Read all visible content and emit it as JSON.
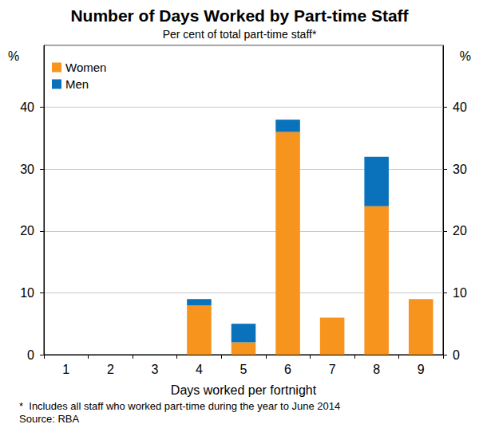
{
  "chart_data": {
    "type": "bar",
    "title": "Number of Days Worked by Part-time Staff",
    "subtitle": "Per cent of total part-time staff*",
    "x_label": "Days worked per fortnight",
    "y_label": "%",
    "notes": [
      "*  Includes all staff who worked part-time during the year to June 2014",
      "Source: RBA"
    ],
    "categories": [
      "1",
      "2",
      "3",
      "4",
      "5",
      "6",
      "7",
      "8",
      "9"
    ],
    "series": [
      {
        "name": "Women",
        "color": "#f7941d",
        "values": [
          0,
          0,
          0,
          8,
          2,
          36,
          6,
          24,
          9
        ]
      },
      {
        "name": "Men",
        "color": "#0a72ba",
        "values": [
          0,
          0,
          0,
          1,
          3,
          2,
          0,
          8,
          0
        ]
      }
    ],
    "ylim": [
      0,
      50
    ],
    "yticks": [
      0,
      10,
      20,
      30,
      40
    ],
    "stacked": true,
    "grid": true,
    "legend": "upper left"
  }
}
